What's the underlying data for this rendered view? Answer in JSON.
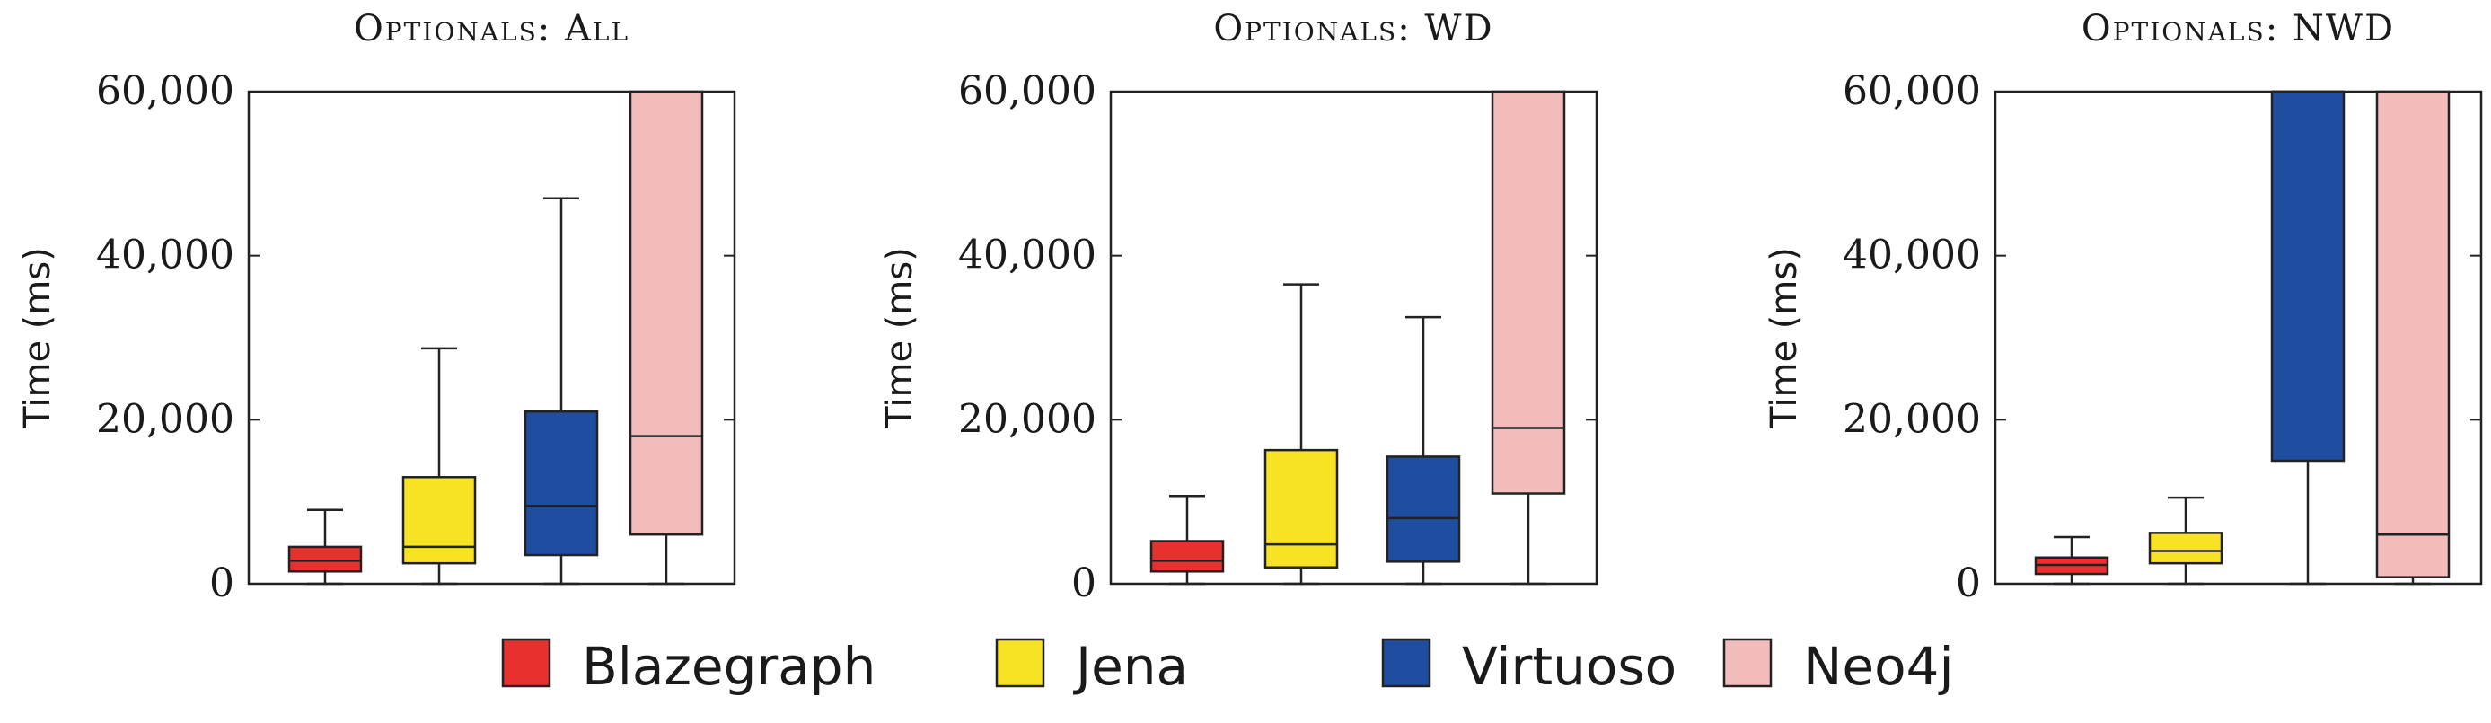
{
  "chart_data": [
    {
      "type": "boxplot",
      "title": "Optionals: All",
      "ylabel": "Time (ms)",
      "ylim": [
        0,
        60000
      ],
      "yticks": [
        0,
        20000,
        40000,
        60000
      ],
      "ytick_labels": [
        "0",
        "20,000",
        "40,000",
        "60,000"
      ],
      "series": [
        {
          "name": "Blazegraph",
          "min": 0,
          "q1": 1500,
          "median": 2800,
          "q3": 4500,
          "max": 9000,
          "max_clipped": false
        },
        {
          "name": "Jena",
          "min": 0,
          "q1": 2500,
          "median": 4500,
          "q3": 13000,
          "max": 28700,
          "max_clipped": false
        },
        {
          "name": "Virtuoso",
          "min": 0,
          "q1": 3500,
          "median": 9500,
          "q3": 21000,
          "max": 47000,
          "max_clipped": false
        },
        {
          "name": "Neo4j",
          "min": 0,
          "q1": 6000,
          "median": 18000,
          "q3": 60000,
          "max": 60000,
          "max_clipped": true
        }
      ]
    },
    {
      "type": "boxplot",
      "title": "Optionals: WD",
      "ylabel": "Time (ms)",
      "ylim": [
        0,
        60000
      ],
      "yticks": [
        0,
        20000,
        40000,
        60000
      ],
      "ytick_labels": [
        "0",
        "20,000",
        "40,000",
        "60,000"
      ],
      "series": [
        {
          "name": "Blazegraph",
          "min": 0,
          "q1": 1500,
          "median": 2800,
          "q3": 5200,
          "max": 10700,
          "max_clipped": false
        },
        {
          "name": "Jena",
          "min": 0,
          "q1": 2000,
          "median": 4800,
          "q3": 16300,
          "max": 36500,
          "max_clipped": false
        },
        {
          "name": "Virtuoso",
          "min": 0,
          "q1": 2700,
          "median": 8000,
          "q3": 15500,
          "max": 32500,
          "max_clipped": false
        },
        {
          "name": "Neo4j",
          "min": 0,
          "q1": 11000,
          "median": 19000,
          "q3": 60000,
          "max": 60000,
          "max_clipped": true
        }
      ]
    },
    {
      "type": "boxplot",
      "title": "Optionals: NWD",
      "ylabel": "Time (ms)",
      "ylim": [
        0,
        60000
      ],
      "yticks": [
        0,
        20000,
        40000,
        60000
      ],
      "ytick_labels": [
        "0",
        "20,000",
        "40,000",
        "60,000"
      ],
      "series": [
        {
          "name": "Blazegraph",
          "min": 0,
          "q1": 1200,
          "median": 2300,
          "q3": 3200,
          "max": 5700,
          "max_clipped": false
        },
        {
          "name": "Jena",
          "min": 0,
          "q1": 2500,
          "median": 4000,
          "q3": 6200,
          "max": 10500,
          "max_clipped": false
        },
        {
          "name": "Virtuoso",
          "min": 0,
          "q1": 15000,
          "median": 60000,
          "q3": 60000,
          "max": 60000,
          "max_clipped": true
        },
        {
          "name": "Neo4j",
          "min": 0,
          "q1": 800,
          "median": 6000,
          "q3": 60000,
          "max": 60000,
          "max_clipped": true
        }
      ]
    }
  ],
  "legend": {
    "position": "bottom",
    "items": [
      {
        "name": "Blazegraph",
        "color": "#e8302e"
      },
      {
        "name": "Jena",
        "color": "#f7e323"
      },
      {
        "name": "Virtuoso",
        "color": "#1f4da0"
      },
      {
        "name": "Neo4j",
        "color": "#f2bcbd"
      }
    ]
  }
}
